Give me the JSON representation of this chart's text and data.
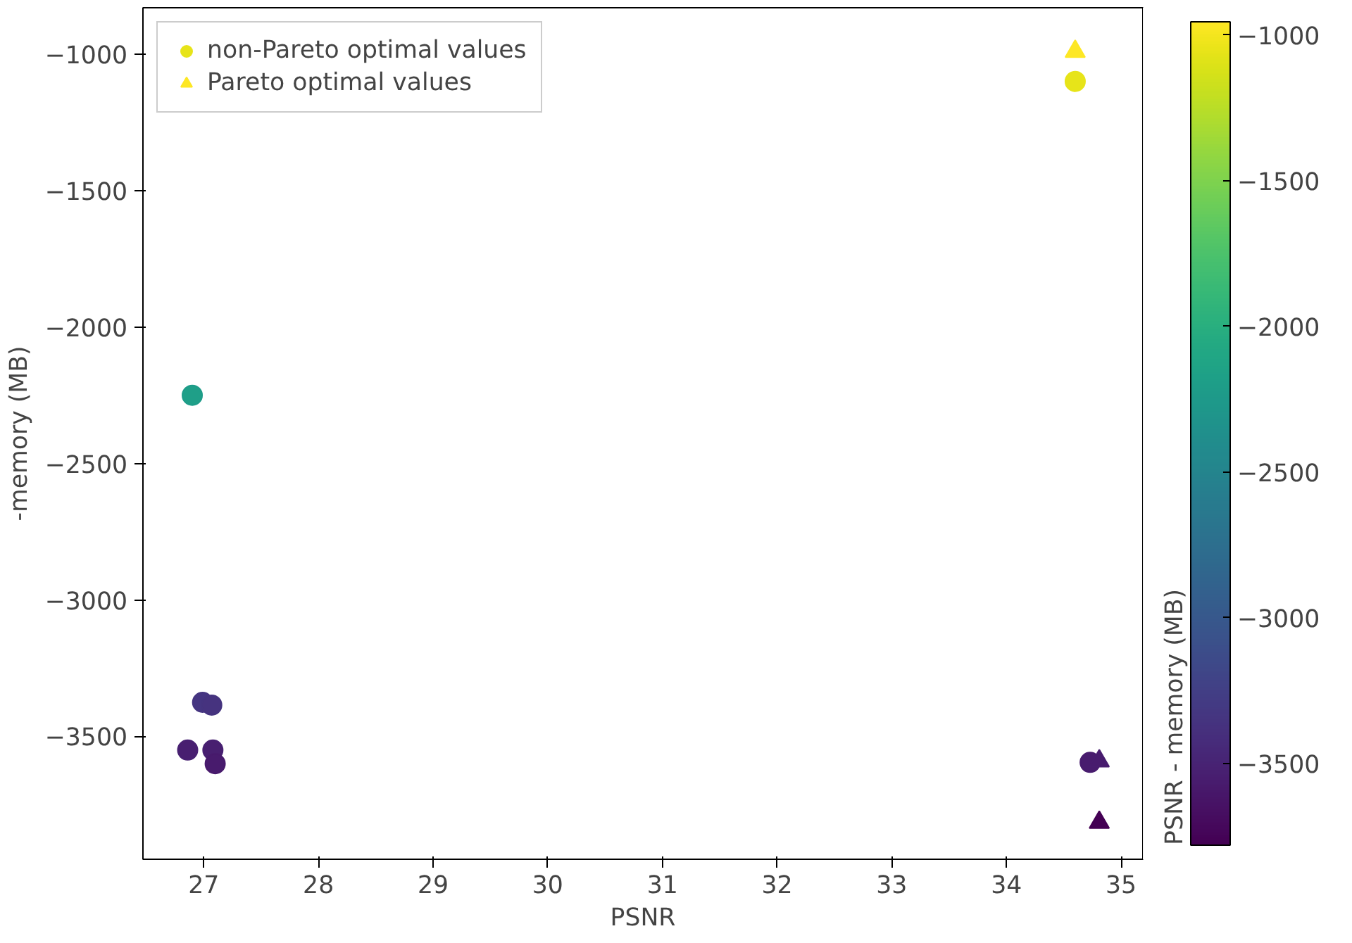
{
  "chart_data": {
    "type": "scatter",
    "xlabel": "PSNR",
    "ylabel": "-memory (MB)",
    "clabel": "PSNR - memory (MB)",
    "xlim": [
      26.47,
      35.19
    ],
    "ylim": [
      -3950,
      -830
    ],
    "xticks": [
      27,
      28,
      29,
      30,
      31,
      32,
      33,
      34,
      35
    ],
    "yticks": [
      -3500,
      -3000,
      -2500,
      -2000,
      -1500,
      -1000
    ],
    "clim": [
      -3780,
      -955
    ],
    "cticks": [
      -3500,
      -3000,
      -2500,
      -2000,
      -1500,
      -1000
    ],
    "legend": "top left",
    "grid": false,
    "series": [
      {
        "name": "non-Pareto optimal values",
        "marker": "circle",
        "x": [
          26.9,
          26.99,
          27.07,
          26.86,
          27.08,
          27.1,
          34.73,
          34.6
        ],
        "values": [
          -2250,
          -3375,
          -3385,
          -3550,
          -3550,
          -3600,
          -3595,
          -1100
        ],
        "cvalues": [
          -2223,
          -3348,
          -3358,
          -3523,
          -3523,
          -3573,
          -3560,
          -1065
        ],
        "colors": [
          "#1f9f88",
          "#453581",
          "#46337f",
          "#481f70",
          "#481f70",
          "#481b6d",
          "#481c6e",
          "#e7e419"
        ]
      },
      {
        "name": "Pareto optimal values",
        "marker": "triangle",
        "x": [
          34.6,
          34.81,
          34.81
        ],
        "values": [
          -990,
          -3590,
          -3815
        ],
        "cvalues": [
          -955,
          -3555,
          -3780
        ],
        "colors": [
          "#fde725",
          "#481c6e",
          "#440154"
        ]
      }
    ]
  }
}
